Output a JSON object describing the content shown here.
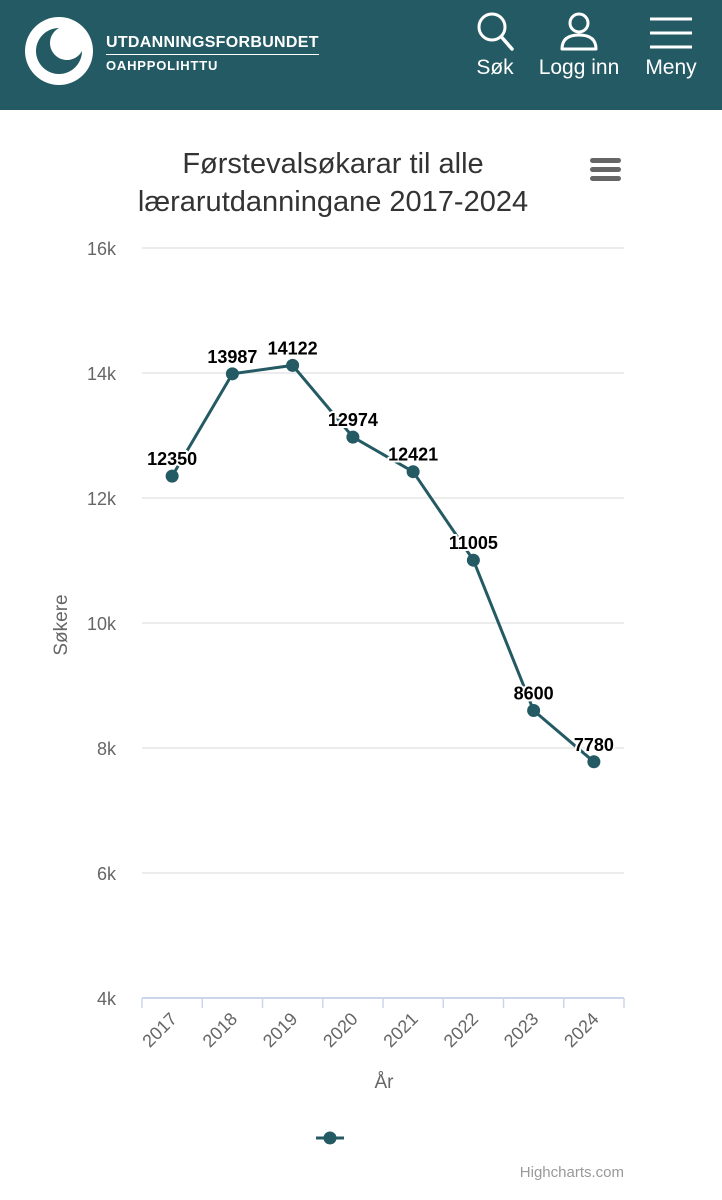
{
  "header": {
    "org_line1": "UTDANNINGSFORBUNDET",
    "org_line2": "OAHPPOLIHTTU",
    "search_label": "Søk",
    "login_label": "Logg inn",
    "menu_label": "Meny",
    "brand_color": "#245a63"
  },
  "chart_data": {
    "type": "line",
    "title_lines": [
      "Førstevalsøkarar til alle",
      "lærarutdanningane 2017-2024"
    ],
    "categories": [
      "2017",
      "2018",
      "2019",
      "2020",
      "2021",
      "2022",
      "2023",
      "2024"
    ],
    "series": [
      {
        "name": "",
        "values": [
          12350,
          13987,
          14122,
          12974,
          12421,
          11005,
          8600,
          7780
        ],
        "color": "#245a63"
      }
    ],
    "ylim": [
      4000,
      16000
    ],
    "yticks": [
      4000,
      6000,
      8000,
      10000,
      12000,
      14000,
      16000
    ],
    "ytick_labels": [
      "4k",
      "6k",
      "8k",
      "10k",
      "12k",
      "14k",
      "16k"
    ],
    "xlabel": "År",
    "ylabel": "Søkere",
    "grid": true,
    "legend": "bottom-center",
    "credit": "Highcharts.com"
  }
}
